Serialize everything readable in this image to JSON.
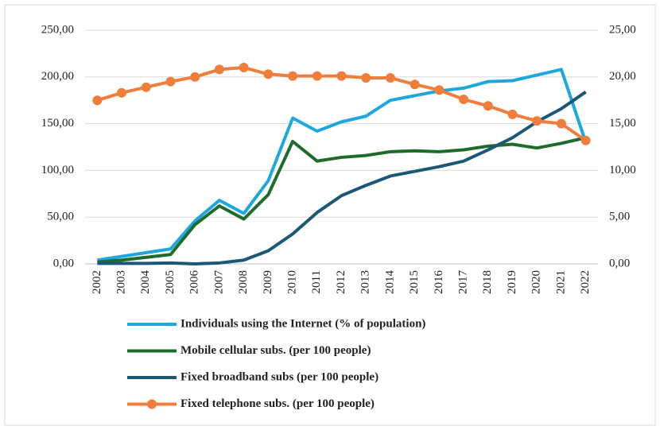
{
  "chart_data": {
    "type": "line",
    "categories": [
      "2002",
      "2003",
      "2004",
      "2005",
      "2006",
      "2007",
      "2008",
      "2009",
      "2010",
      "2011",
      "2012",
      "2013",
      "2014",
      "2015",
      "2016",
      "2017",
      "2018",
      "2019",
      "2020",
      "2021",
      "2022"
    ],
    "ylim": [
      0,
      250
    ],
    "yticks": [
      {
        "value": 0,
        "label": "0,00"
      },
      {
        "value": 50,
        "label": "50,00"
      },
      {
        "value": 100,
        "label": "100,00"
      },
      {
        "value": 150,
        "label": "150,00"
      },
      {
        "value": 200,
        "label": "200,00"
      },
      {
        "value": 250,
        "label": "250,00"
      }
    ],
    "y2lim": [
      0,
      25
    ],
    "y2ticks": [
      {
        "value": 0,
        "label": "0,00"
      },
      {
        "value": 5,
        "label": "5,00"
      },
      {
        "value": 10,
        "label": "10,00"
      },
      {
        "value": 15,
        "label": "15,00"
      },
      {
        "value": 20,
        "label": "20,00"
      },
      {
        "value": 25,
        "label": "25,00"
      }
    ],
    "grid": true,
    "legend": "bottom",
    "series": [
      {
        "name": "Individuals using the Internet (% of population)",
        "color": "#1ea6df",
        "axis": "y2",
        "values": [
          0.4,
          0.8,
          1.2,
          1.6,
          4.6,
          6.8,
          5.4,
          8.9,
          15.6,
          14.2,
          15.2,
          15.8,
          17.5,
          18.0,
          18.5,
          18.8,
          19.5,
          19.6,
          20.2,
          20.8,
          13.0
        ]
      },
      {
        "name": "Mobile cellular subs. (per 100 people)",
        "color": "#1f6b2b",
        "values": [
          2,
          4,
          7,
          10,
          42,
          62,
          48,
          74,
          131,
          110,
          114,
          116,
          120,
          121,
          120,
          122,
          126,
          128,
          124,
          129,
          135
        ]
      },
      {
        "name": "Fixed broadband subs (per 100 people)",
        "color": "#1b5877",
        "axis": "y2",
        "values": [
          0.05,
          0.05,
          0.05,
          0.1,
          0.0,
          0.1,
          0.4,
          1.4,
          3.2,
          5.5,
          7.3,
          8.4,
          9.4,
          9.9,
          10.4,
          11.0,
          12.2,
          13.5,
          15.2,
          16.6,
          18.4
        ]
      },
      {
        "name": "Fixed telephone subs. (per 100 people)",
        "color": "#ef7d3b",
        "axis": "y2",
        "markers": true,
        "values": [
          17.5,
          18.3,
          18.9,
          19.5,
          20.0,
          20.8,
          21.0,
          20.3,
          20.1,
          20.1,
          20.1,
          19.9,
          19.9,
          19.2,
          18.6,
          17.6,
          16.9,
          16.0,
          15.3,
          15.0,
          13.2
        ]
      }
    ]
  }
}
